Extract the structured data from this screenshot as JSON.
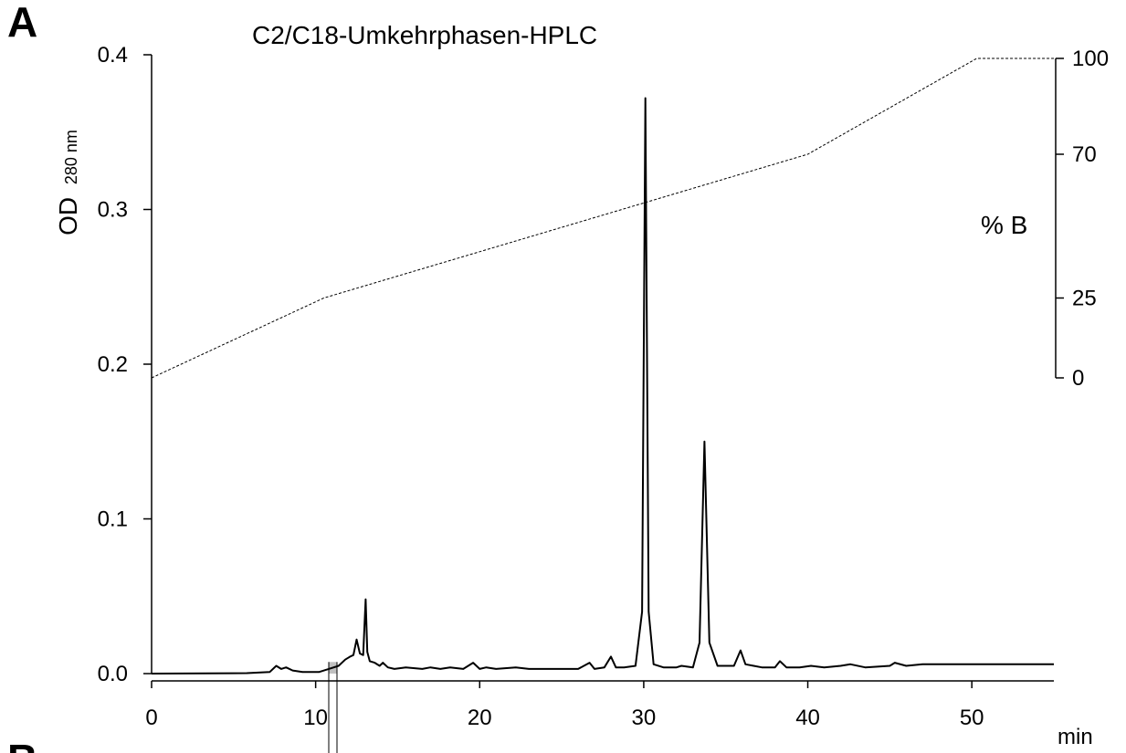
{
  "panel_label": "A",
  "panel_label_next": "B",
  "chart_data": {
    "type": "line",
    "title": "C2/C18-Umkehrphasen-HPLC",
    "xlabel": "min",
    "ylabel": "OD",
    "ylabel_sub": "280 nm",
    "y2label": "% B",
    "xlim": [
      0,
      55
    ],
    "ylim": [
      0,
      0.4
    ],
    "y2lim": [
      0,
      100
    ],
    "x_ticks": [
      0,
      10,
      20,
      30,
      40,
      50
    ],
    "y_ticks": [
      0.0,
      0.1,
      0.2,
      0.3,
      0.4
    ],
    "y_tick_labels": [
      "0.0",
      "0.1",
      "0.2",
      "0.3",
      "0.4"
    ],
    "y2_ticks": [
      0,
      25,
      70,
      100
    ],
    "legend": "none",
    "grid": false,
    "series": [
      {
        "style": "solid",
        "axis": "left",
        "x": [
          0,
          5.8,
          7.2,
          7.6,
          7.9,
          8.2,
          8.6,
          9.2,
          10.2,
          10.8,
          11.4,
          11.8,
          12.1,
          12.3,
          12.5,
          12.7,
          12.9,
          13.05,
          13.15,
          13.3,
          13.6,
          13.9,
          14.1,
          14.4,
          14.8,
          15.5,
          16.5,
          17.0,
          17.6,
          18.2,
          19.0,
          19.6,
          20.0,
          20.4,
          21.0,
          22.2,
          23.0,
          24.5,
          26.0,
          26.7,
          27.0,
          27.6,
          28.0,
          28.3,
          28.8,
          29.5,
          29.9,
          30.1,
          30.3,
          30.6,
          31.2,
          32.0,
          32.3,
          33.0,
          33.4,
          33.7,
          34.0,
          34.5,
          35.5,
          35.9,
          36.2,
          36.7,
          37.2,
          38.0,
          38.3,
          38.7,
          39.5,
          40.2,
          41.0,
          42.0,
          42.6,
          43.5,
          45.0,
          45.3,
          46.0,
          47.0,
          48.0,
          50.0,
          52.0,
          55.0
        ],
        "y": [
          0.0,
          0.0003,
          0.001,
          0.005,
          0.003,
          0.004,
          0.002,
          0.001,
          0.001,
          0.003,
          0.005,
          0.009,
          0.011,
          0.012,
          0.022,
          0.013,
          0.012,
          0.048,
          0.014,
          0.008,
          0.007,
          0.005,
          0.007,
          0.004,
          0.003,
          0.004,
          0.003,
          0.004,
          0.003,
          0.004,
          0.003,
          0.007,
          0.003,
          0.004,
          0.003,
          0.004,
          0.003,
          0.003,
          0.003,
          0.007,
          0.003,
          0.004,
          0.011,
          0.004,
          0.004,
          0.005,
          0.04,
          0.372,
          0.04,
          0.006,
          0.004,
          0.004,
          0.005,
          0.004,
          0.02,
          0.15,
          0.02,
          0.005,
          0.005,
          0.015,
          0.006,
          0.005,
          0.004,
          0.004,
          0.008,
          0.004,
          0.004,
          0.005,
          0.004,
          0.005,
          0.006,
          0.004,
          0.005,
          0.007,
          0.005,
          0.006,
          0.006,
          0.006,
          0.006,
          0.006
        ]
      },
      {
        "style": "dashed",
        "axis": "right",
        "x": [
          0,
          10.5,
          40,
          50.3,
          55
        ],
        "y": [
          0,
          25,
          70,
          100,
          100
        ]
      }
    ],
    "annotations": [
      {
        "type": "shaded_region",
        "x_range": [
          10.8,
          11.3
        ]
      }
    ]
  }
}
